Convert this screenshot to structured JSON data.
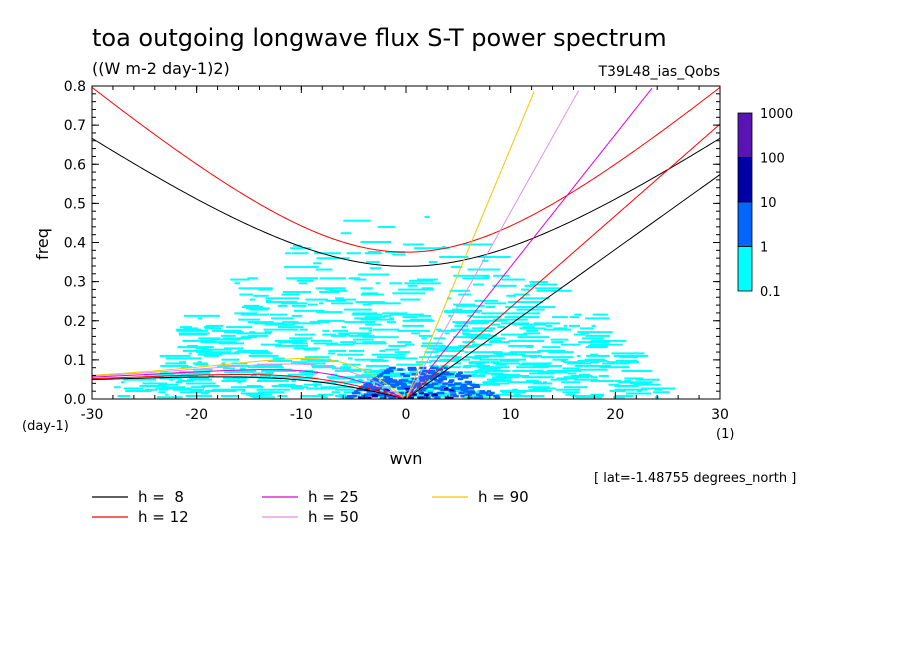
{
  "chart_data": {
    "type": "line",
    "title": "toa outgoing longwave flux S-T power spectrum",
    "units_label": "((W m-2 day-1)2)",
    "dataset_label": "T39L48_ias_Qobs",
    "xlabel": "wvn",
    "ylabel": "freq",
    "x_unit_label": "(1)",
    "y_unit_label": "(day-1)",
    "footnote": "[ lat=-1.48755 degrees_north ]",
    "xlim": [
      -30,
      30
    ],
    "ylim": [
      0,
      0.8
    ],
    "x_ticks": [
      "-30",
      "-20",
      "-10",
      "0",
      "10",
      "20",
      "30"
    ],
    "y_ticks": [
      "0.0",
      "0.1",
      "0.2",
      "0.3",
      "0.4",
      "0.5",
      "0.6",
      "0.7",
      "0.8"
    ],
    "colorbar": {
      "labels": [
        "1000",
        "100",
        "10",
        "1",
        "0.1"
      ],
      "colors": [
        "#5a14b4",
        "#0000a8",
        "#0066ff",
        "#00ffff"
      ]
    },
    "series": [
      {
        "name": "h =  8",
        "equivalent_depth": 8,
        "color": "#000000"
      },
      {
        "name": "h = 12",
        "equivalent_depth": 12,
        "color": "#ff0000"
      },
      {
        "name": "h = 25",
        "equivalent_depth": 25,
        "color": "#e600c8"
      },
      {
        "name": "h = 50",
        "equivalent_depth": 50,
        "color": "#e090e8"
      },
      {
        "name": "h = 90",
        "equivalent_depth": 90,
        "color": "#f0c800"
      }
    ]
  }
}
